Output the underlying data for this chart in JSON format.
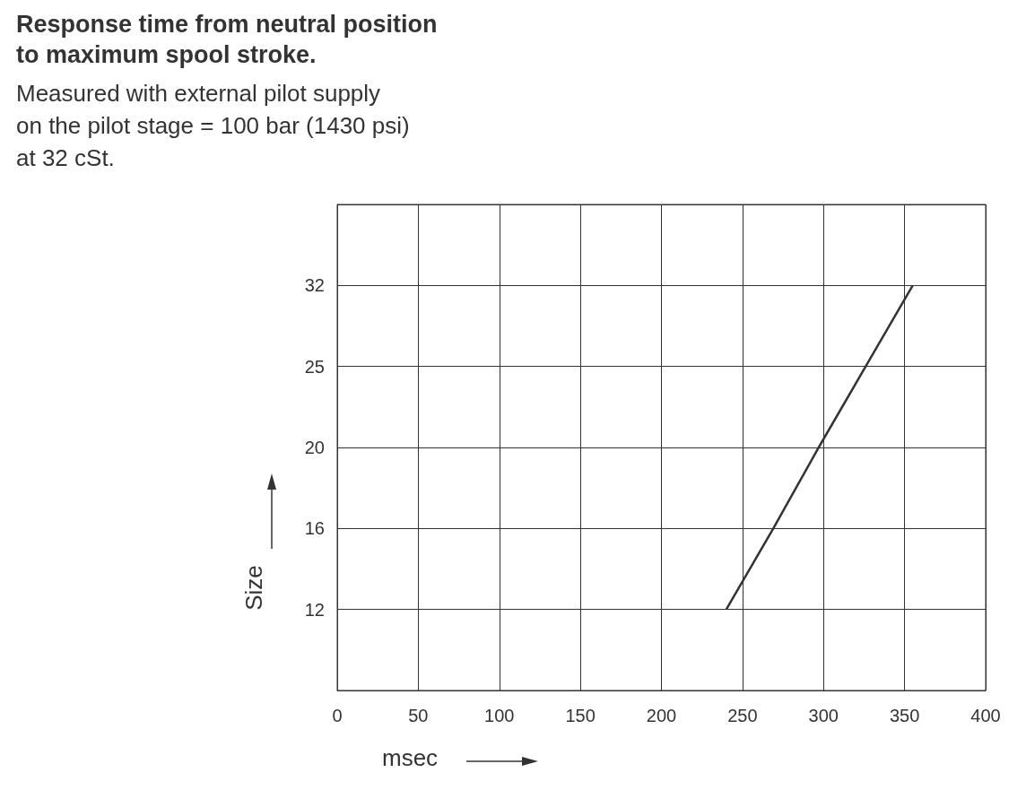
{
  "chart_data": {
    "type": "line",
    "orientation": "horizontal",
    "title": "Response time from neutral position\nto maximum spool stroke.",
    "subtitle": "Measured with external pilot supply\non the pilot stage = 100 bar (1430 psi)\nat 32 cSt.",
    "xlabel": "msec",
    "ylabel": "Size",
    "categories": [
      null,
      "32",
      "25",
      "20",
      "16",
      "12",
      null
    ],
    "values": [
      null,
      355,
      326,
      297,
      269,
      240,
      null
    ],
    "color": "#333333",
    "xlim": [
      0,
      400
    ],
    "xticks": [
      0,
      50,
      100,
      150,
      200,
      250,
      300,
      350,
      400
    ],
    "grid": true,
    "marker": "none",
    "line_style": "solid"
  }
}
